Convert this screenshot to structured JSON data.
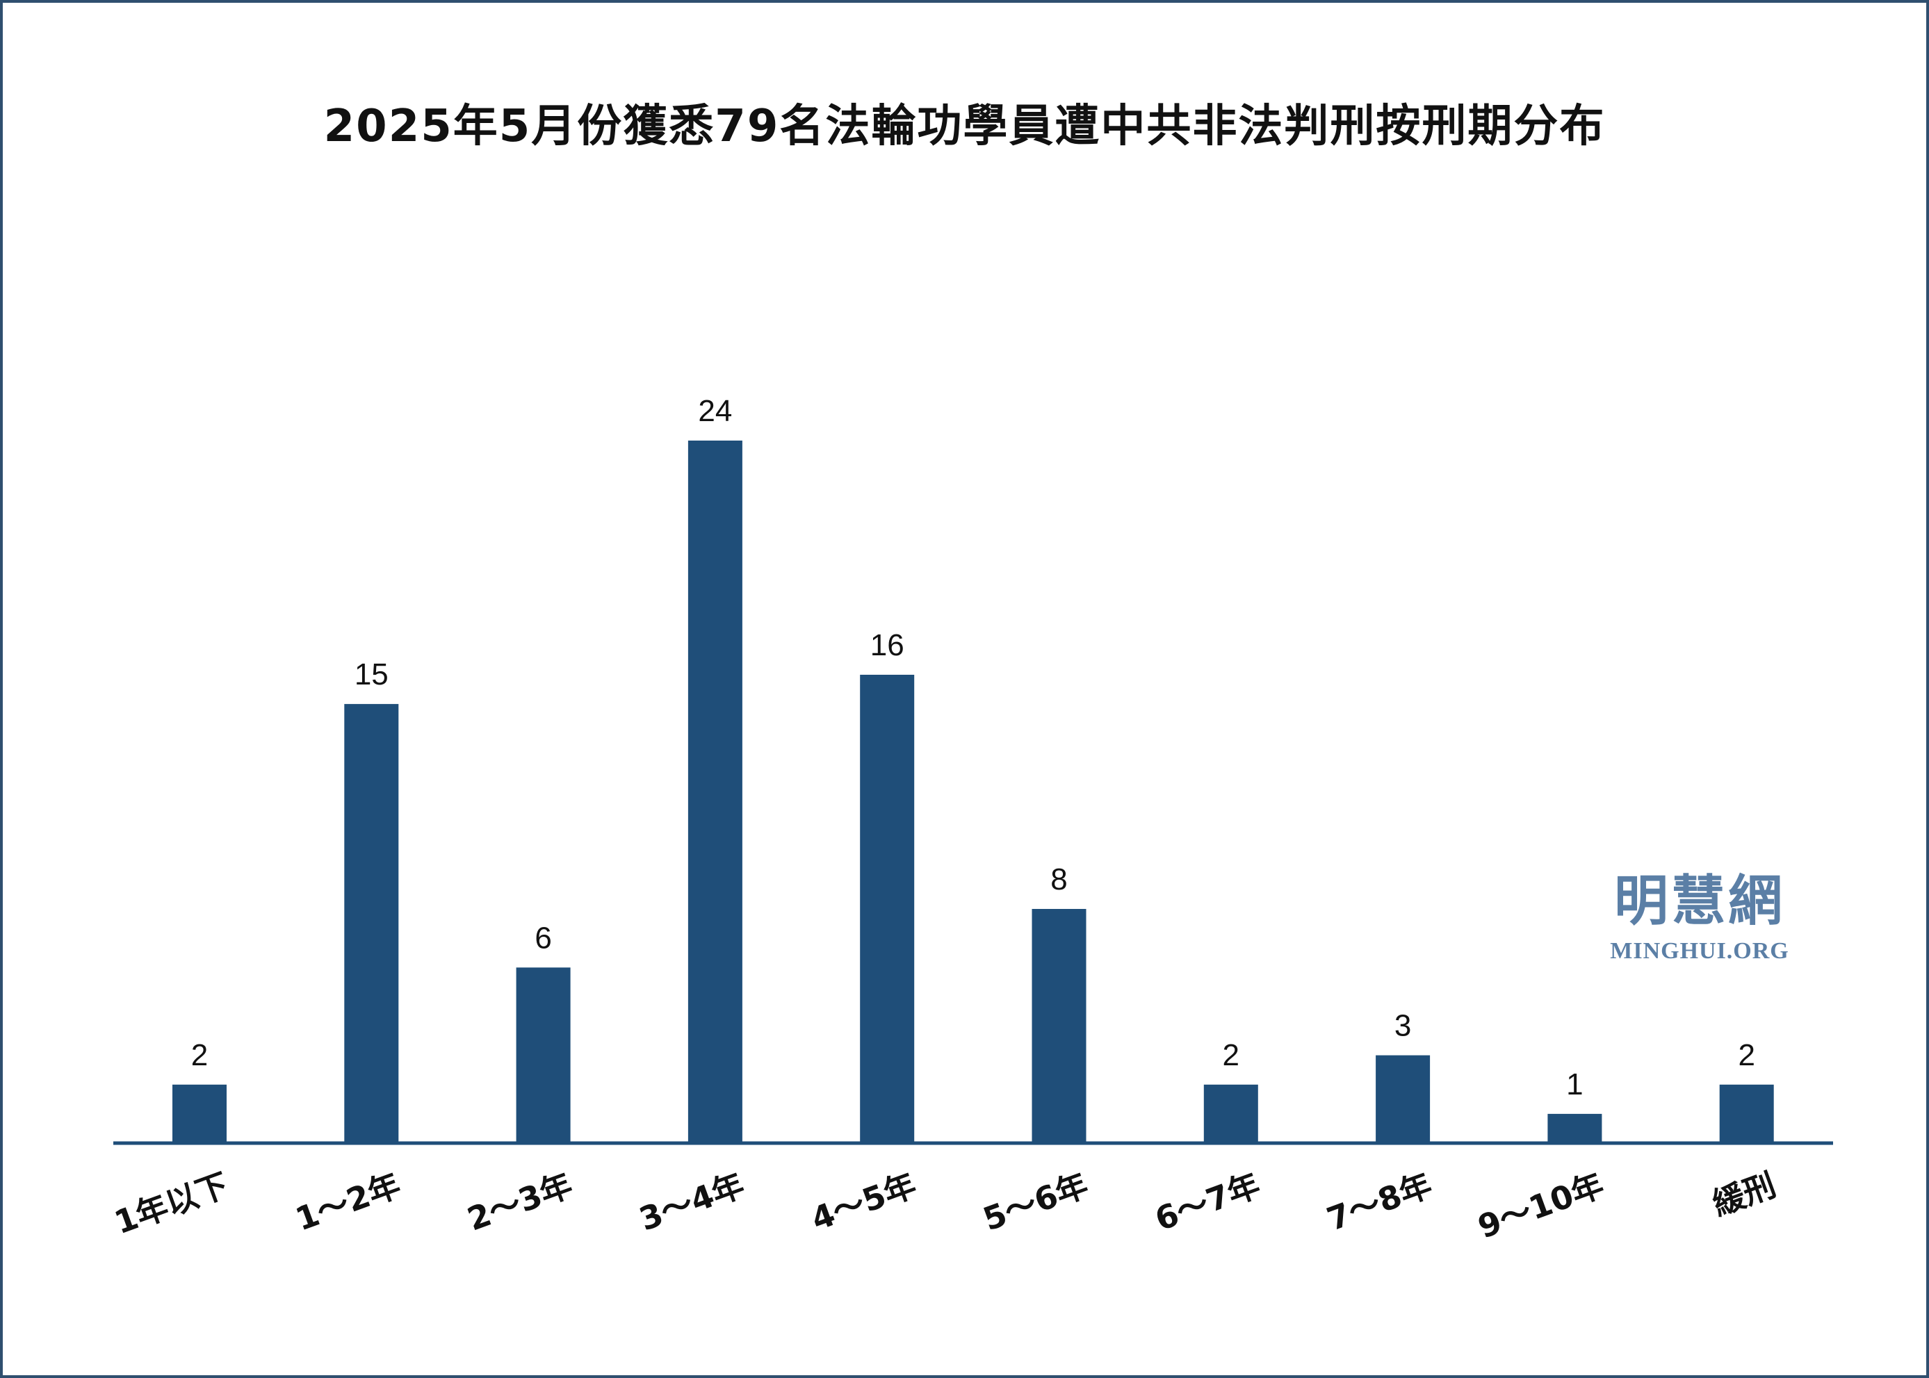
{
  "chart_data": {
    "type": "bar",
    "title": "2025年5月份獲悉79名法輪功學員遭中共非法判刑按刑期分布",
    "categories": [
      "1年以下",
      "1～2年",
      "2～3年",
      "3～4年",
      "4～5年",
      "5～6年",
      "6～7年",
      "7～8年",
      "9～10年",
      "緩刑"
    ],
    "values": [
      2,
      15,
      6,
      24,
      16,
      8,
      2,
      3,
      1,
      2
    ],
    "xlabel": "",
    "ylabel": "",
    "ylim": [
      0,
      24
    ],
    "grid": false,
    "legend": "none",
    "data_labels": true,
    "bar_color": "#1f4e79"
  },
  "watermark": {
    "cn": "明慧網",
    "en": "MINGHUI.ORG",
    "color": "#5b7fa6"
  }
}
